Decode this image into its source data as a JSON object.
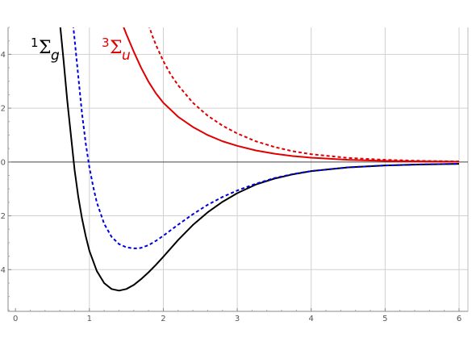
{
  "chart_data": {
    "type": "line",
    "title": "",
    "xlabel": "",
    "ylabel": "",
    "xlim": [
      -0.1,
      6.12
    ],
    "ylim": [
      -5.55,
      5.0
    ],
    "grid": true,
    "x_ticks": [
      "0",
      "1",
      "2",
      "3",
      "4",
      "5",
      "6"
    ],
    "y_ticks": [
      "4",
      "2",
      "0",
      "2",
      "4"
    ],
    "x_tick_values": [
      0,
      1,
      2,
      3,
      4,
      5,
      6
    ],
    "y_tick_values": [
      4,
      2,
      0,
      -2,
      -4
    ],
    "annotations": [
      {
        "sup": "1",
        "base": "Σ",
        "sub": "g",
        "color": "#000000"
      },
      {
        "sup": "3",
        "base": "Σ",
        "sub": "u",
        "color": "#e00000"
      }
    ],
    "series": [
      {
        "color": "#000000",
        "style": "solid",
        "x": [
          0.6,
          0.65,
          0.7,
          0.75,
          0.8,
          0.85,
          0.9,
          0.95,
          1.0,
          1.1,
          1.2,
          1.3,
          1.4,
          1.5,
          1.6,
          1.7,
          1.8,
          1.9,
          2.0,
          2.2,
          2.4,
          2.6,
          2.8,
          3.0,
          3.25,
          3.5,
          3.75,
          4.0,
          4.5,
          5.0,
          5.5,
          6.0
        ],
        "y": [
          5.2,
          3.8,
          2.3,
          1.0,
          -0.3,
          -1.3,
          -2.1,
          -2.75,
          -3.3,
          -4.05,
          -4.5,
          -4.72,
          -4.78,
          -4.72,
          -4.57,
          -4.35,
          -4.1,
          -3.82,
          -3.52,
          -2.9,
          -2.34,
          -1.87,
          -1.48,
          -1.16,
          -0.84,
          -0.62,
          -0.46,
          -0.34,
          -0.2,
          -0.13,
          -0.09,
          -0.07
        ]
      },
      {
        "color": "#0000dd",
        "style": "dashed",
        "x": [
          0.78,
          0.82,
          0.86,
          0.9,
          0.95,
          1.0,
          1.05,
          1.1,
          1.2,
          1.3,
          1.4,
          1.5,
          1.6,
          1.65,
          1.7,
          1.8,
          1.9,
          2.0,
          2.2,
          2.4,
          2.6,
          2.8,
          3.0,
          3.25,
          3.5,
          3.75,
          4.0,
          4.5,
          5.0,
          5.5,
          6.0
        ],
        "y": [
          5.1,
          4.0,
          2.9,
          1.8,
          0.7,
          -0.2,
          -0.9,
          -1.5,
          -2.3,
          -2.78,
          -3.05,
          -3.17,
          -3.21,
          -3.21,
          -3.19,
          -3.09,
          -2.93,
          -2.74,
          -2.33,
          -1.94,
          -1.59,
          -1.3,
          -1.06,
          -0.81,
          -0.6,
          -0.45,
          -0.34,
          -0.2,
          -0.13,
          -0.09,
          -0.07
        ]
      },
      {
        "color": "#e00000",
        "style": "solid",
        "x": [
          1.45,
          1.5,
          1.6,
          1.7,
          1.8,
          1.9,
          2.0,
          2.2,
          2.4,
          2.6,
          2.8,
          3.0,
          3.25,
          3.5,
          3.75,
          4.0,
          4.5,
          5.0,
          5.5,
          6.0
        ],
        "y": [
          5.1,
          4.75,
          4.1,
          3.5,
          2.98,
          2.55,
          2.2,
          1.68,
          1.3,
          1.0,
          0.77,
          0.6,
          0.43,
          0.31,
          0.22,
          0.16,
          0.08,
          0.04,
          0.02,
          0.01
        ]
      },
      {
        "color": "#e00000",
        "style": "dashed",
        "x": [
          1.8,
          1.85,
          1.9,
          2.0,
          2.1,
          2.2,
          2.4,
          2.6,
          2.8,
          3.0,
          3.25,
          3.5,
          3.75,
          4.0,
          4.5,
          5.0,
          5.5,
          6.0
        ],
        "y": [
          5.1,
          4.7,
          4.35,
          3.75,
          3.25,
          2.85,
          2.2,
          1.72,
          1.35,
          1.06,
          0.77,
          0.56,
          0.4,
          0.29,
          0.15,
          0.08,
          0.04,
          0.02
        ]
      }
    ]
  }
}
